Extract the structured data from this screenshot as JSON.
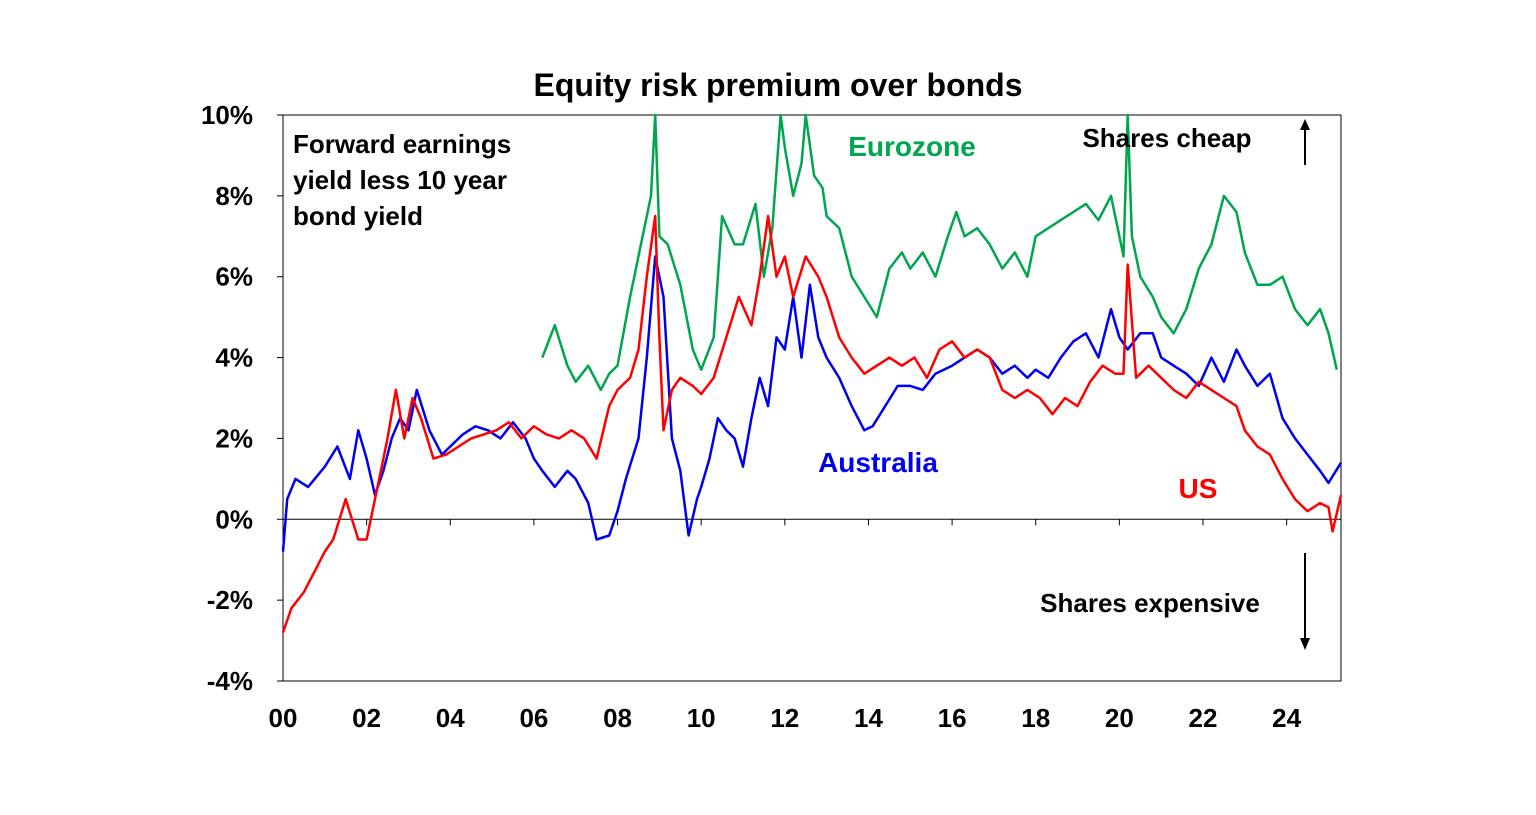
{
  "chart_data": {
    "type": "line",
    "title": "Equity risk premium over bonds",
    "xlabel": "",
    "ylabel": "",
    "xlim": [
      2000,
      2025.3
    ],
    "ylim": [
      -4,
      10
    ],
    "y_ticks": [
      "10%",
      "8%",
      "6%",
      "4%",
      "2%",
      "0%",
      "-2%",
      "-4%"
    ],
    "y_tick_values": [
      10,
      8,
      6,
      4,
      2,
      0,
      -2,
      -4
    ],
    "x_ticks": [
      "00",
      "02",
      "04",
      "06",
      "08",
      "10",
      "12",
      "14",
      "16",
      "18",
      "20",
      "22",
      "24"
    ],
    "x_tick_values": [
      2000,
      2002,
      2004,
      2006,
      2008,
      2010,
      2012,
      2014,
      2016,
      2018,
      2020,
      2022,
      2024
    ],
    "grid": false,
    "legend": "none (series labelled directly on chart)",
    "annotations": {
      "subtitle": [
        "Forward earnings",
        "yield less 10 year",
        "bond yield"
      ],
      "shares_cheap": "Shares cheap",
      "shares_expensive": "Shares expensive"
    },
    "series": [
      {
        "name": "Eurozone",
        "color": "#00a550",
        "x": [
          2006.2,
          2006.5,
          2006.8,
          2007.0,
          2007.3,
          2007.6,
          2007.8,
          2008.0,
          2008.3,
          2008.6,
          2008.8,
          2008.9,
          2009.0,
          2009.2,
          2009.5,
          2009.8,
          2010.0,
          2010.3,
          2010.5,
          2010.8,
          2011.0,
          2011.3,
          2011.5,
          2011.7,
          2011.9,
          2012.0,
          2012.2,
          2012.4,
          2012.5,
          2012.7,
          2012.9,
          2013.0,
          2013.3,
          2013.6,
          2013.9,
          2014.2,
          2014.5,
          2014.8,
          2015.0,
          2015.3,
          2015.6,
          2015.9,
          2016.1,
          2016.3,
          2016.6,
          2016.9,
          2017.2,
          2017.5,
          2017.8,
          2018.0,
          2018.3,
          2018.6,
          2018.9,
          2019.2,
          2019.5,
          2019.8,
          2020.0,
          2020.1,
          2020.2,
          2020.3,
          2020.5,
          2020.8,
          2021.0,
          2021.3,
          2021.6,
          2021.9,
          2022.2,
          2022.5,
          2022.8,
          2023.0,
          2023.3,
          2023.6,
          2023.9,
          2024.2,
          2024.5,
          2024.8,
          2025.0,
          2025.2
        ],
        "values": [
          4.0,
          4.8,
          3.8,
          3.4,
          3.8,
          3.2,
          3.6,
          3.8,
          5.5,
          7.0,
          8.0,
          10.0,
          7.0,
          6.8,
          5.8,
          4.2,
          3.7,
          4.5,
          7.5,
          6.8,
          6.8,
          7.8,
          6.0,
          7.2,
          10.0,
          9.2,
          8.0,
          8.8,
          10.0,
          8.5,
          8.2,
          7.5,
          7.2,
          6.0,
          5.5,
          5.0,
          6.2,
          6.6,
          6.2,
          6.6,
          6.0,
          7.0,
          7.6,
          7.0,
          7.2,
          6.8,
          6.2,
          6.6,
          6.0,
          7.0,
          7.2,
          7.4,
          7.6,
          7.8,
          7.4,
          8.0,
          7.0,
          6.5,
          10.0,
          7.0,
          6.0,
          5.5,
          5.0,
          4.6,
          5.2,
          6.2,
          6.8,
          8.0,
          7.6,
          6.6,
          5.8,
          5.8,
          6.0,
          5.2,
          4.8,
          5.2,
          4.6,
          3.7
        ]
      },
      {
        "name": "Australia",
        "color": "#0000ee",
        "x": [
          2000.0,
          2000.1,
          2000.3,
          2000.6,
          2001.0,
          2001.3,
          2001.6,
          2001.8,
          2002.0,
          2002.2,
          2002.4,
          2002.6,
          2002.8,
          2003.0,
          2003.2,
          2003.5,
          2003.8,
          2004.0,
          2004.3,
          2004.6,
          2004.9,
          2005.2,
          2005.5,
          2005.8,
          2006.0,
          2006.2,
          2006.5,
          2006.8,
          2007.0,
          2007.3,
          2007.5,
          2007.8,
          2008.0,
          2008.2,
          2008.5,
          2008.7,
          2008.9,
          2009.1,
          2009.3,
          2009.5,
          2009.7,
          2009.9,
          2010.0,
          2010.2,
          2010.4,
          2010.6,
          2010.8,
          2011.0,
          2011.2,
          2011.4,
          2011.6,
          2011.8,
          2012.0,
          2012.2,
          2012.4,
          2012.6,
          2012.8,
          2013.0,
          2013.3,
          2013.6,
          2013.9,
          2014.1,
          2014.4,
          2014.7,
          2015.0,
          2015.3,
          2015.6,
          2016.0,
          2016.3,
          2016.6,
          2016.9,
          2017.2,
          2017.5,
          2017.8,
          2018.0,
          2018.3,
          2018.6,
          2018.9,
          2019.2,
          2019.5,
          2019.8,
          2020.0,
          2020.2,
          2020.5,
          2020.8,
          2021.0,
          2021.3,
          2021.6,
          2021.9,
          2022.2,
          2022.5,
          2022.8,
          2023.0,
          2023.3,
          2023.6,
          2023.9,
          2024.2,
          2024.5,
          2024.8,
          2025.0,
          2025.3
        ],
        "values": [
          -0.8,
          0.5,
          1.0,
          0.8,
          1.3,
          1.8,
          1.0,
          2.2,
          1.5,
          0.6,
          1.2,
          2.0,
          2.5,
          2.2,
          3.2,
          2.2,
          1.6,
          1.8,
          2.1,
          2.3,
          2.2,
          2.0,
          2.4,
          2.0,
          1.5,
          1.2,
          0.8,
          1.2,
          1.0,
          0.4,
          -0.5,
          -0.4,
          0.2,
          1.0,
          2.0,
          4.0,
          6.5,
          5.5,
          2.0,
          1.2,
          -0.4,
          0.5,
          0.8,
          1.5,
          2.5,
          2.2,
          2.0,
          1.3,
          2.5,
          3.5,
          2.8,
          4.5,
          4.2,
          5.5,
          4.0,
          5.8,
          4.5,
          4.0,
          3.5,
          2.8,
          2.2,
          2.3,
          2.8,
          3.3,
          3.3,
          3.2,
          3.6,
          3.8,
          4.0,
          4.2,
          4.0,
          3.6,
          3.8,
          3.5,
          3.7,
          3.5,
          4.0,
          4.4,
          4.6,
          4.0,
          5.2,
          4.5,
          4.2,
          4.6,
          4.6,
          4.0,
          3.8,
          3.6,
          3.3,
          4.0,
          3.4,
          4.2,
          3.8,
          3.3,
          3.6,
          2.5,
          2.0,
          1.6,
          1.2,
          0.9,
          1.4
        ]
      },
      {
        "name": "US",
        "color": "#ff0000",
        "x": [
          2000.0,
          2000.2,
          2000.5,
          2000.8,
          2001.0,
          2001.2,
          2001.5,
          2001.8,
          2002.0,
          2002.3,
          2002.5,
          2002.7,
          2002.9,
          2003.1,
          2003.3,
          2003.6,
          2003.9,
          2004.2,
          2004.5,
          2004.8,
          2005.1,
          2005.4,
          2005.7,
          2006.0,
          2006.3,
          2006.6,
          2006.9,
          2007.2,
          2007.5,
          2007.8,
          2008.0,
          2008.3,
          2008.5,
          2008.7,
          2008.9,
          2009.0,
          2009.1,
          2009.3,
          2009.5,
          2009.8,
          2010.0,
          2010.3,
          2010.6,
          2010.9,
          2011.2,
          2011.4,
          2011.6,
          2011.8,
          2012.0,
          2012.2,
          2012.5,
          2012.8,
          2013.0,
          2013.3,
          2013.6,
          2013.9,
          2014.2,
          2014.5,
          2014.8,
          2015.1,
          2015.4,
          2015.7,
          2016.0,
          2016.3,
          2016.6,
          2016.9,
          2017.2,
          2017.5,
          2017.8,
          2018.1,
          2018.4,
          2018.7,
          2019.0,
          2019.3,
          2019.6,
          2019.9,
          2020.1,
          2020.2,
          2020.4,
          2020.7,
          2021.0,
          2021.3,
          2021.6,
          2021.9,
          2022.2,
          2022.5,
          2022.8,
          2023.0,
          2023.3,
          2023.6,
          2023.9,
          2024.2,
          2024.5,
          2024.8,
          2025.0,
          2025.1,
          2025.3
        ],
        "values": [
          -2.8,
          -2.2,
          -1.8,
          -1.2,
          -0.8,
          -0.5,
          0.5,
          -0.5,
          -0.5,
          1.0,
          2.0,
          3.2,
          2.0,
          3.0,
          2.5,
          1.5,
          1.6,
          1.8,
          2.0,
          2.1,
          2.2,
          2.4,
          2.0,
          2.3,
          2.1,
          2.0,
          2.2,
          2.0,
          1.5,
          2.8,
          3.2,
          3.5,
          4.2,
          6.0,
          7.5,
          4.5,
          2.2,
          3.2,
          3.5,
          3.3,
          3.1,
          3.5,
          4.5,
          5.5,
          4.8,
          6.0,
          7.5,
          6.0,
          6.5,
          5.5,
          6.5,
          6.0,
          5.5,
          4.5,
          4.0,
          3.6,
          3.8,
          4.0,
          3.8,
          4.0,
          3.5,
          4.2,
          4.4,
          4.0,
          4.2,
          4.0,
          3.2,
          3.0,
          3.2,
          3.0,
          2.6,
          3.0,
          2.8,
          3.4,
          3.8,
          3.6,
          3.6,
          6.3,
          3.5,
          3.8,
          3.5,
          3.2,
          3.0,
          3.4,
          3.2,
          3.0,
          2.8,
          2.2,
          1.8,
          1.6,
          1.0,
          0.5,
          0.2,
          0.4,
          0.3,
          -0.3,
          0.6
        ]
      }
    ]
  }
}
